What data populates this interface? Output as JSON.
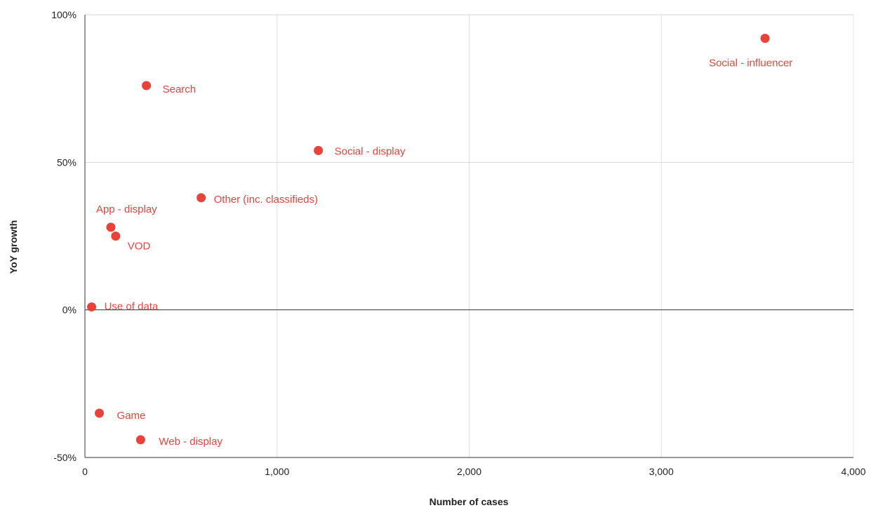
{
  "chart_data": {
    "type": "scatter",
    "title": "",
    "xlabel": "Number of cases",
    "ylabel": "YoY growth",
    "xlim": [
      0,
      4000
    ],
    "ylim": [
      -50,
      100
    ],
    "x_ticks": [
      0,
      1000,
      2000,
      3000,
      4000
    ],
    "x_tick_labels": [
      "0",
      "1,000",
      "2,000",
      "3,000",
      "4,000"
    ],
    "y_ticks": [
      -50,
      0,
      50,
      100
    ],
    "y_tick_labels": [
      "-50%",
      "0%",
      "50%",
      "100%"
    ],
    "grid": true,
    "color": "#e8433a",
    "points": [
      {
        "label": "Social - influencer",
        "x": 3540,
        "y": 92
      },
      {
        "label": "Search",
        "x": 320,
        "y": 76
      },
      {
        "label": "Social - display",
        "x": 1215,
        "y": 54
      },
      {
        "label": "Other (inc. classifieds)",
        "x": 605,
        "y": 38
      },
      {
        "label": "App - display",
        "x": 135,
        "y": 28
      },
      {
        "label": "VOD",
        "x": 160,
        "y": 25
      },
      {
        "label": "Use of data",
        "x": 35,
        "y": 1
      },
      {
        "label": "Game",
        "x": 75,
        "y": -35
      },
      {
        "label": "Web - display",
        "x": 290,
        "y": -44
      }
    ]
  }
}
